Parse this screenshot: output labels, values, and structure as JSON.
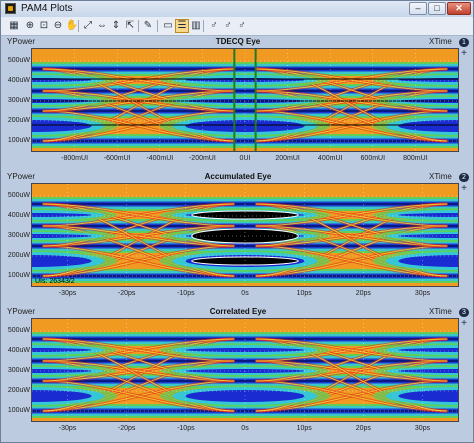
{
  "window": {
    "title": "PAM4 Plots",
    "minimize": "–",
    "maximize": "□",
    "close": "✕"
  },
  "toolbar": {
    "buttons": [
      {
        "name": "chart-icon",
        "glyph": "▦"
      },
      {
        "name": "zoom-in-icon",
        "glyph": "⊕"
      },
      {
        "name": "zoom-box-icon",
        "glyph": "⊡"
      },
      {
        "name": "zoom-out-icon",
        "glyph": "⊖"
      },
      {
        "name": "pan-hand-icon",
        "glyph": "✋"
      },
      {
        "name": "rescale-icon",
        "glyph": "⤢"
      },
      {
        "name": "scale-x-icon",
        "glyph": "⇔"
      },
      {
        "name": "scale-y-icon",
        "glyph": "⇕"
      },
      {
        "name": "scale-xy-icon",
        "glyph": "⇱"
      },
      {
        "name": "wrench-icon",
        "glyph": "✎"
      },
      {
        "name": "single-pane-icon",
        "glyph": "▭"
      },
      {
        "name": "stacked-panes-icon",
        "glyph": "☰"
      },
      {
        "name": "grid-panes-icon",
        "glyph": "▥"
      },
      {
        "name": "marker-icon",
        "glyph": "♂"
      },
      {
        "name": "marker-delta-icon",
        "glyph": "♂"
      },
      {
        "name": "marker-off-icon",
        "glyph": "♂"
      }
    ]
  },
  "colors": {
    "eye_low": "#1a2bd1",
    "eye_mid": "#35c7d6",
    "eye_green": "#55d35b",
    "eye_yellow": "#f2e230",
    "eye_orange": "#f09a22",
    "eye_red": "#e1241a",
    "cursor": "#1f7a24",
    "axis_bg": "#bccbe0"
  },
  "panels": [
    {
      "number": "1",
      "title": "TDECQ Eye",
      "y_axis": "YPower",
      "x_axis": "XTime",
      "y_ticks": [
        "500uW",
        "400uW",
        "300uW",
        "200uW",
        "100uW"
      ],
      "x_ticks": [
        "-800mUI",
        "-600mUI",
        "-400mUI",
        "-200mUI",
        "0UI",
        "200mUI",
        "400mUI",
        "600mUI",
        "800mUI"
      ],
      "overlay": "",
      "chart_data": {
        "type": "heatmap",
        "title": "TDECQ Eye",
        "xlabel": "Time",
        "ylabel": "Power",
        "x_unit": "mUI",
        "xlim": [
          -1000,
          1000
        ],
        "y_unit": "uW",
        "ylim": [
          50,
          560
        ],
        "eye_levels_uW": [
          100,
          250,
          350,
          460
        ],
        "eye_centers_mUI": [
          -1000,
          0,
          1000
        ],
        "cursors_x_mUI": [
          -50,
          50
        ],
        "threshold_lines_uW": [
          180,
          300,
          410
        ]
      }
    },
    {
      "number": "2",
      "title": "Accumulated Eye",
      "y_axis": "YPower",
      "x_axis": "XTime",
      "y_ticks": [
        "500uW",
        "400uW",
        "300uW",
        "200uW",
        "100uW"
      ],
      "x_ticks": [
        "-30ps",
        "-20ps",
        "-10ps",
        "0s",
        "10ps",
        "20ps",
        "30ps"
      ],
      "overlay": "UIs: 26343/2",
      "chart_data": {
        "type": "heatmap",
        "title": "Accumulated Eye",
        "xlabel": "Time",
        "ylabel": "Power",
        "x_unit": "ps",
        "xlim": [
          -36,
          36
        ],
        "y_unit": "uW",
        "ylim": [
          50,
          560
        ],
        "eye_levels_uW": [
          100,
          250,
          350,
          460
        ],
        "eye_centers_ps": [
          -36,
          0,
          36
        ]
      }
    },
    {
      "number": "3",
      "title": "Correlated Eye",
      "y_axis": "YPower",
      "x_axis": "XTime",
      "y_ticks": [
        "500uW",
        "400uW",
        "300uW",
        "200uW",
        "100uW"
      ],
      "x_ticks": [
        "-30ps",
        "-20ps",
        "-10ps",
        "0s",
        "10ps",
        "20ps",
        "30ps"
      ],
      "overlay": "",
      "chart_data": {
        "type": "heatmap",
        "title": "Correlated Eye",
        "xlabel": "Time",
        "ylabel": "Power",
        "x_unit": "ps",
        "xlim": [
          -36,
          36
        ],
        "y_unit": "uW",
        "ylim": [
          50,
          560
        ],
        "eye_levels_uW": [
          100,
          250,
          350,
          460
        ],
        "eye_centers_ps": [
          -36,
          0,
          36
        ]
      }
    }
  ]
}
